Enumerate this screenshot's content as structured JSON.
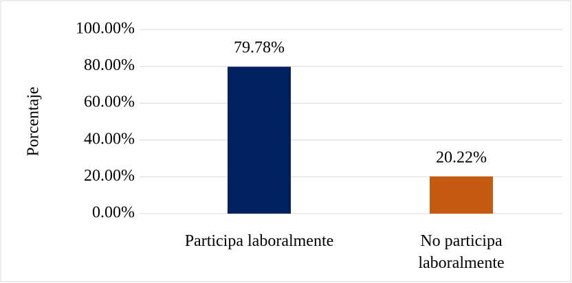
{
  "chart_data": {
    "type": "bar",
    "y_label": "Porcentaje",
    "categories": [
      "Participa laboralmente",
      "No participa laboralmente"
    ],
    "values": [
      79.78,
      20.22
    ],
    "value_labels": [
      "79.78%",
      "20.22%"
    ],
    "colors": [
      "#002060",
      "#c55a11"
    ],
    "ylim": [
      0,
      100
    ],
    "yticks": [
      {
        "value": 0,
        "label": "0.00%"
      },
      {
        "value": 20,
        "label": "20.00%"
      },
      {
        "value": 40,
        "label": "40.00%"
      },
      {
        "value": 60,
        "label": "60.00%"
      },
      {
        "value": 80,
        "label": "80.00%"
      },
      {
        "value": 100,
        "label": "100.00%"
      }
    ],
    "grid": true
  }
}
